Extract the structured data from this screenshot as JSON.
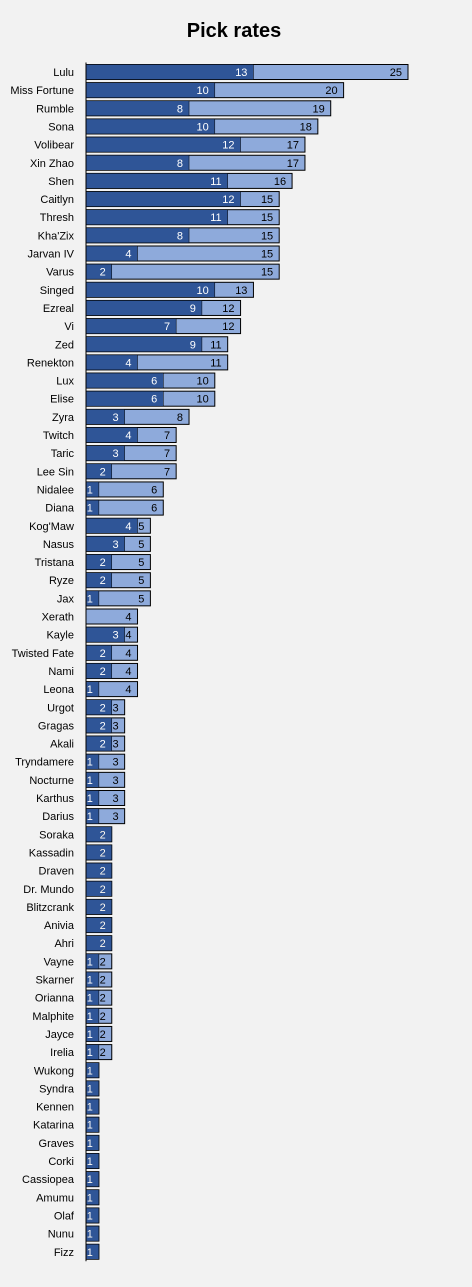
{
  "chart_data": {
    "type": "bar",
    "orientation": "horizontal",
    "stacked": false,
    "overlapping": true,
    "title": "Pick rates",
    "grid": false,
    "legend": "none",
    "colors": {
      "background": "#f2f2f2",
      "series_dark": "#2f5597",
      "series_light": "#8eaadb",
      "bar_border": "#000000"
    },
    "categories": [
      "Lulu",
      "Miss Fortune",
      "Rumble",
      "Sona",
      "Volibear",
      "Xin Zhao",
      "Shen",
      "Caitlyn",
      "Thresh",
      "Kha'Zix",
      "Jarvan IV",
      "Varus",
      "Singed",
      "Ezreal",
      "Vi",
      "Zed",
      "Renekton",
      "Lux",
      "Elise",
      "Zyra",
      "Twitch",
      "Taric",
      "Lee Sin",
      "Nidalee",
      "Diana",
      "Kog'Maw",
      "Nasus",
      "Tristana",
      "Ryze",
      "Jax",
      "Xerath",
      "Kayle",
      "Twisted Fate",
      "Nami",
      "Leona",
      "Urgot",
      "Gragas",
      "Akali",
      "Tryndamere",
      "Nocturne",
      "Karthus",
      "Darius",
      "Soraka",
      "Kassadin",
      "Draven",
      "Dr. Mundo",
      "Blitzcrank",
      "Anivia",
      "Ahri",
      "Vayne",
      "Skarner",
      "Orianna",
      "Malphite",
      "Jayce",
      "Irelia",
      "Wukong",
      "Syndra",
      "Kennen",
      "Katarina",
      "Graves",
      "Corki",
      "Cassiopea",
      "Amumu",
      "Olaf",
      "Nunu",
      "Fizz"
    ],
    "series": [
      {
        "values": [
          13,
          10,
          8,
          10,
          12,
          8,
          11,
          12,
          11,
          8,
          4,
          2,
          10,
          9,
          7,
          9,
          4,
          6,
          6,
          3,
          4,
          3,
          2,
          1,
          1,
          4,
          3,
          2,
          2,
          1,
          0,
          3,
          2,
          2,
          1,
          2,
          2,
          2,
          1,
          1,
          1,
          1,
          2,
          2,
          2,
          2,
          2,
          2,
          2,
          1,
          1,
          1,
          1,
          1,
          1,
          1,
          1,
          1,
          1,
          1,
          1,
          1,
          1,
          1,
          1,
          1
        ]
      },
      {
        "values": [
          25,
          20,
          19,
          18,
          17,
          17,
          16,
          15,
          15,
          15,
          15,
          15,
          13,
          12,
          12,
          11,
          11,
          10,
          10,
          8,
          7,
          7,
          7,
          6,
          6,
          5,
          5,
          5,
          5,
          5,
          4,
          4,
          4,
          4,
          4,
          3,
          3,
          3,
          3,
          3,
          3,
          3,
          2,
          2,
          2,
          2,
          2,
          2,
          2,
          2,
          2,
          2,
          2,
          2,
          2,
          1,
          1,
          1,
          1,
          1,
          1,
          1,
          1,
          1,
          1,
          1
        ]
      }
    ]
  }
}
